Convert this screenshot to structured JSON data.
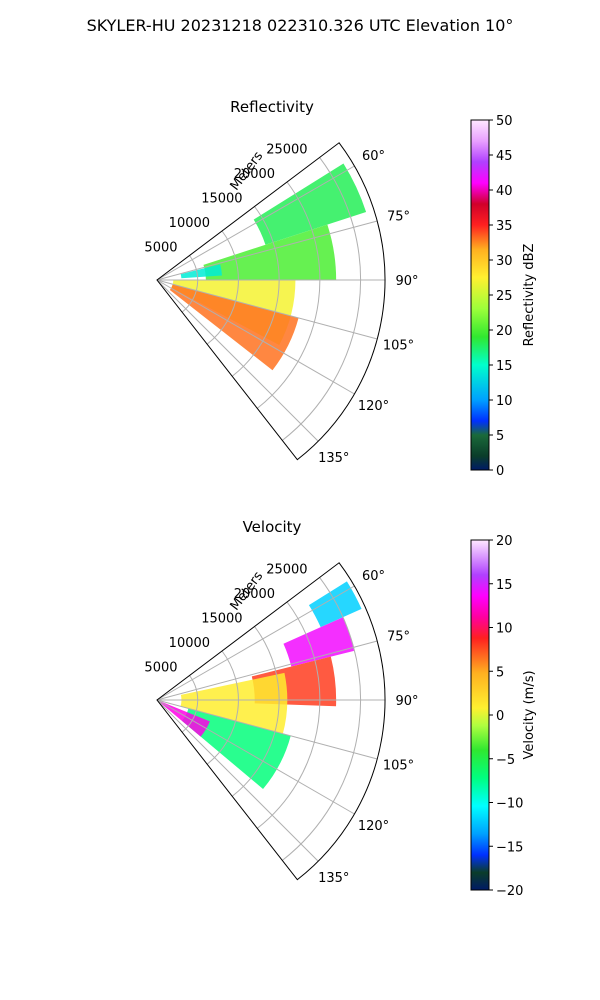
{
  "title": "SKYLER-HU  20231218  022310.326 UTC Elevation 10°",
  "chart_data": [
    {
      "type": "heatmap",
      "projection": "polar sector (PPI)",
      "title": "Reflectivity",
      "radial_label": "Meters",
      "radial_ticks": [
        5000,
        10000,
        15000,
        20000,
        25000
      ],
      "radial_tick_labels": [
        "5000",
        "10000",
        "15000",
        "20000",
        "25000"
      ],
      "r_max": 28000,
      "azimuth_ticks": [
        60,
        75,
        90,
        105,
        120,
        135
      ],
      "azimuth_tick_labels": [
        "60°",
        "75°",
        "90°",
        "105°",
        "120°",
        "135°"
      ],
      "azimuth_range": [
        53,
        142
      ],
      "grid": true,
      "colorbar": {
        "label": "Reflectivity dBZ",
        "min": 0,
        "max": 50,
        "ticks": [
          0,
          5,
          10,
          15,
          20,
          25,
          30,
          35,
          40,
          45,
          50
        ],
        "tick_labels": [
          "0",
          "5",
          "10",
          "15",
          "20",
          "25",
          "30",
          "35",
          "40",
          "45",
          "50"
        ]
      },
      "echo_summary": [
        {
          "azimuth_range": [
            58,
            72
          ],
          "range_m": [
            14000,
            27000
          ],
          "value": 18
        },
        {
          "azimuth_range": [
            72,
            90
          ],
          "range_m": [
            6000,
            22000
          ],
          "value": 20
        },
        {
          "azimuth_range": [
            90,
            118
          ],
          "range_m": [
            2000,
            17000
          ],
          "value": 27
        },
        {
          "azimuth_range": [
            105,
            128
          ],
          "range_m": [
            2000,
            18000
          ],
          "value": 33
        },
        {
          "azimuth_range": [
            76,
            86
          ],
          "range_m": [
            3000,
            8000
          ],
          "value": 14
        }
      ]
    },
    {
      "type": "heatmap",
      "projection": "polar sector (PPI)",
      "title": "Velocity",
      "radial_label": "Meters",
      "radial_ticks": [
        5000,
        10000,
        15000,
        20000,
        25000
      ],
      "radial_tick_labels": [
        "5000",
        "10000",
        "15000",
        "20000",
        "25000"
      ],
      "r_max": 28000,
      "azimuth_ticks": [
        60,
        75,
        90,
        105,
        120,
        135
      ],
      "azimuth_tick_labels": [
        "60°",
        "75°",
        "90°",
        "105°",
        "120°",
        "135°"
      ],
      "azimuth_range": [
        53,
        142
      ],
      "grid": true,
      "colorbar": {
        "label": "Velocity (m/s)",
        "min": -20,
        "max": 20,
        "ticks": [
          -20,
          -15,
          -10,
          -5,
          0,
          5,
          10,
          15,
          20
        ],
        "tick_labels": [
          "−20",
          "−15",
          "−10",
          "−5",
          "0",
          "5",
          "10",
          "15",
          "20"
        ]
      },
      "echo_summary": [
        {
          "azimuth_range": [
            58,
            66
          ],
          "range_m": [
            22000,
            27500
          ],
          "value": -12
        },
        {
          "azimuth_range": [
            66,
            76
          ],
          "range_m": [
            17000,
            25000
          ],
          "value": 14
        },
        {
          "azimuth_range": [
            76,
            92
          ],
          "range_m": [
            12000,
            22000
          ],
          "value": 8
        },
        {
          "azimuth_range": [
            78,
            105
          ],
          "range_m": [
            3000,
            16000
          ],
          "value": 1
        },
        {
          "azimuth_range": [
            105,
            130
          ],
          "range_m": [
            4000,
            17000
          ],
          "value": -7
        },
        {
          "azimuth_range": [
            112,
            130
          ],
          "range_m": [
            500,
            7000
          ],
          "value": 13
        }
      ]
    }
  ]
}
